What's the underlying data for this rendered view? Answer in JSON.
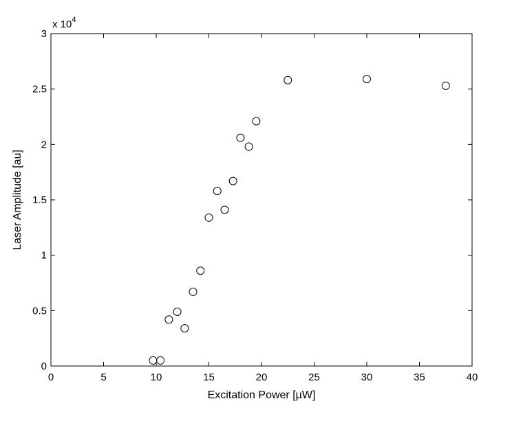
{
  "chart_data": {
    "type": "scatter",
    "xlabel": "Excitation Power [µW]",
    "ylabel": "Laser Amplitude [au]",
    "xlim": [
      0,
      40
    ],
    "ylim": [
      0,
      3
    ],
    "y_multiplier_label": "x 10",
    "y_multiplier_exponent": "4",
    "x_ticks": [
      "0",
      "5",
      "10",
      "15",
      "20",
      "25",
      "30",
      "35",
      "40"
    ],
    "y_ticks": [
      "0",
      "0.5",
      "1",
      "1.5",
      "2",
      "2.5",
      "3"
    ],
    "x_tick_values": [
      0,
      5,
      10,
      15,
      20,
      25,
      30,
      35,
      40
    ],
    "y_tick_values": [
      0,
      0.5,
      1,
      1.5,
      2,
      2.5,
      3
    ],
    "grid": false,
    "marker": "open-circle",
    "points": [
      {
        "x": 9.7,
        "y": 0.05
      },
      {
        "x": 10.4,
        "y": 0.05
      },
      {
        "x": 11.2,
        "y": 0.42
      },
      {
        "x": 12.0,
        "y": 0.49
      },
      {
        "x": 12.7,
        "y": 0.34
      },
      {
        "x": 13.5,
        "y": 0.67
      },
      {
        "x": 14.2,
        "y": 0.86
      },
      {
        "x": 15.0,
        "y": 1.34
      },
      {
        "x": 15.8,
        "y": 1.58
      },
      {
        "x": 16.5,
        "y": 1.41
      },
      {
        "x": 17.3,
        "y": 1.67
      },
      {
        "x": 18.0,
        "y": 2.06
      },
      {
        "x": 18.8,
        "y": 1.98
      },
      {
        "x": 19.5,
        "y": 2.21
      },
      {
        "x": 22.5,
        "y": 2.58
      },
      {
        "x": 30.0,
        "y": 2.59
      },
      {
        "x": 37.5,
        "y": 2.53
      }
    ]
  }
}
